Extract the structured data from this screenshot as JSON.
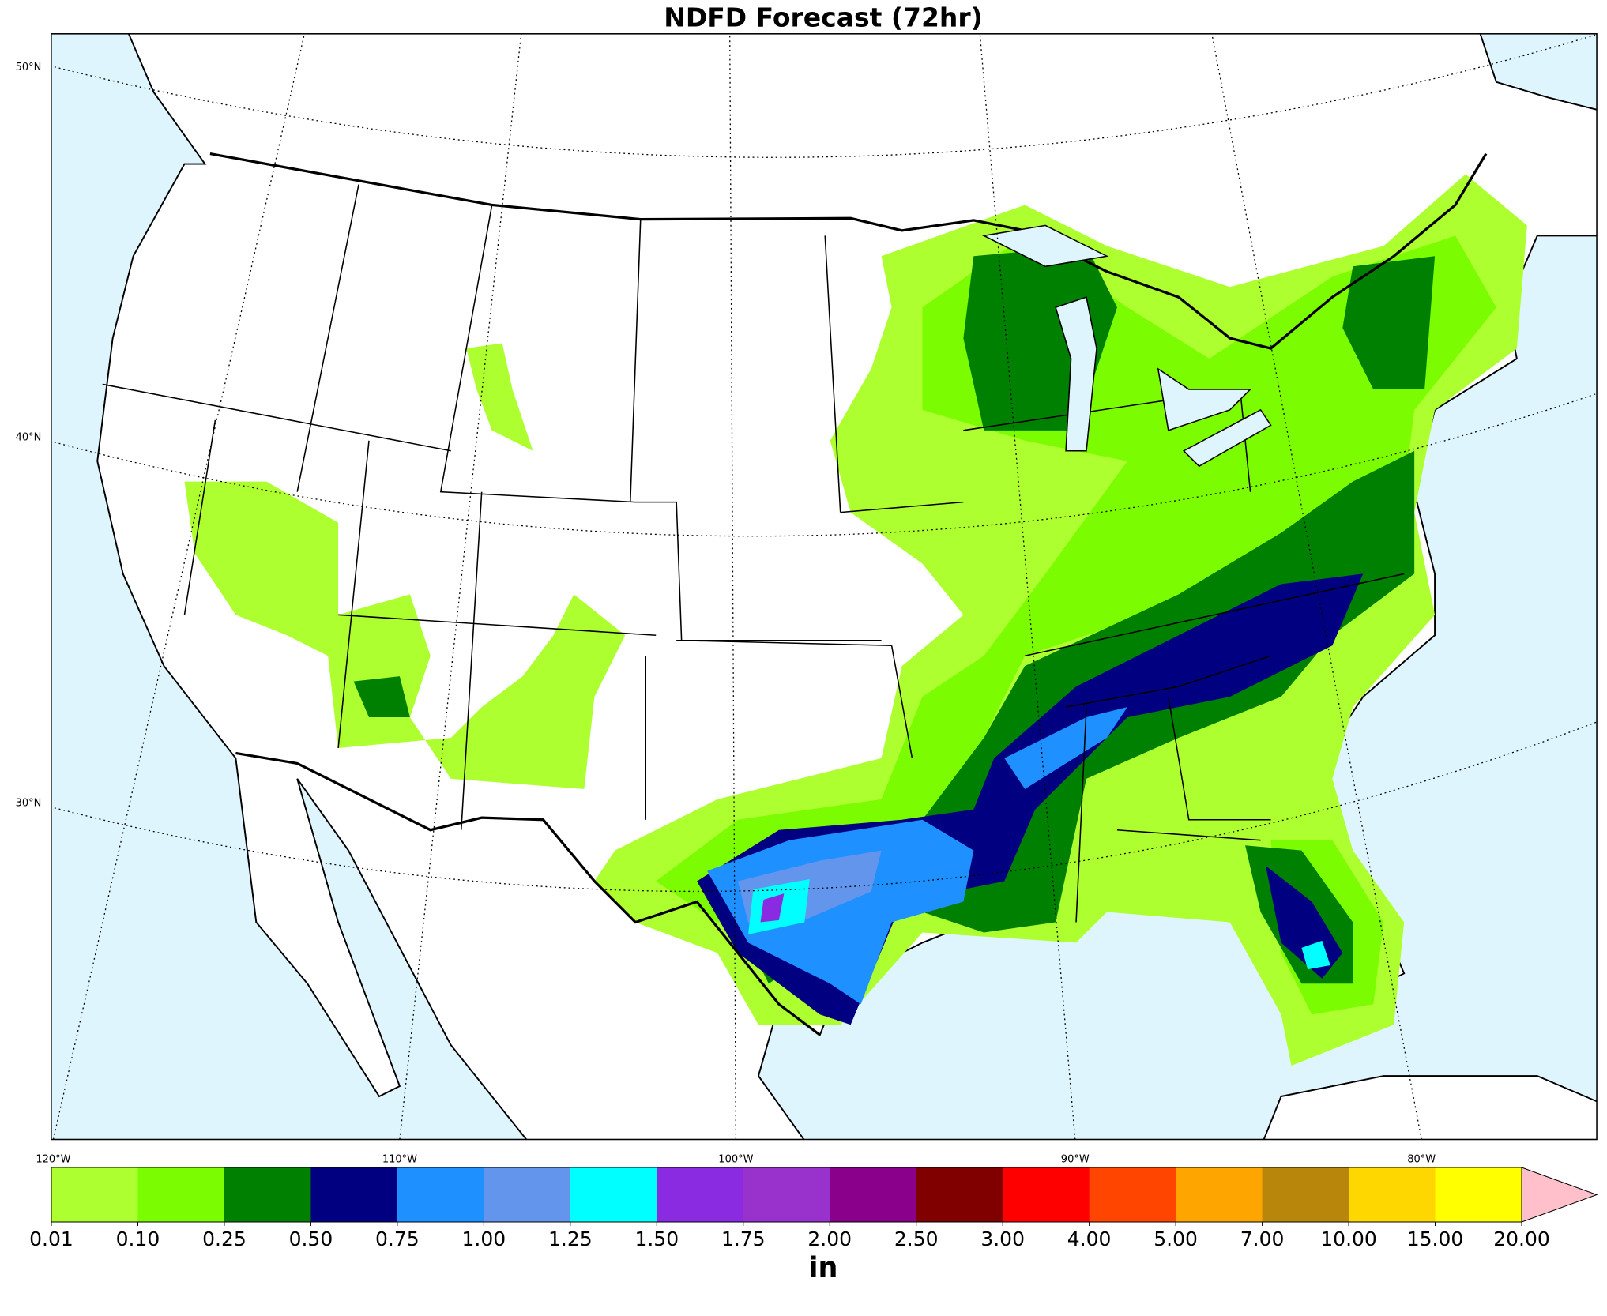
{
  "title": "NDFD Forecast (72hr)",
  "map": {
    "lat_ticks": [
      {
        "value": 50,
        "label": "50°N"
      },
      {
        "value": 40,
        "label": "40°N"
      },
      {
        "value": 30,
        "label": "30°N"
      }
    ],
    "lon_ticks": [
      {
        "value": -120,
        "label": "120°W"
      },
      {
        "value": -110,
        "label": "110°W"
      },
      {
        "value": -100,
        "label": "100°W"
      },
      {
        "value": -90,
        "label": "90°W"
      },
      {
        "value": -80,
        "label": "80°W"
      }
    ]
  },
  "colorbar": {
    "label": "in",
    "levels": [
      {
        "value": 0.01,
        "label": "0.01"
      },
      {
        "value": 0.1,
        "label": "0.10"
      },
      {
        "value": 0.25,
        "label": "0.25"
      },
      {
        "value": 0.5,
        "label": "0.50"
      },
      {
        "value": 0.75,
        "label": "0.75"
      },
      {
        "value": 1,
        "label": "1.00"
      },
      {
        "value": 1.25,
        "label": "1.25"
      },
      {
        "value": 1.5,
        "label": "1.50"
      },
      {
        "value": 1.75,
        "label": "1.75"
      },
      {
        "value": 2,
        "label": "2.00"
      },
      {
        "value": 2.5,
        "label": "2.50"
      },
      {
        "value": 3,
        "label": "3.00"
      },
      {
        "value": 4,
        "label": "4.00"
      },
      {
        "value": 5,
        "label": "5.00"
      },
      {
        "value": 7,
        "label": "7.00"
      },
      {
        "value": 10,
        "label": "10.00"
      },
      {
        "value": 15,
        "label": "15.00"
      },
      {
        "value": 20,
        "label": "20.00"
      }
    ],
    "colors": [
      "#adff2f",
      "#7cfc00",
      "#008000",
      "#000080",
      "#1e90ff",
      "#6495ed",
      "#00ffff",
      "#8a2be2",
      "#9932cc",
      "#8b008b",
      "#800000",
      "#ff0000",
      "#ff4500",
      "#ffa500",
      "#b8860b",
      "#ffd700",
      "#ffff00"
    ],
    "extend_color": "#ffc0cb"
  }
}
